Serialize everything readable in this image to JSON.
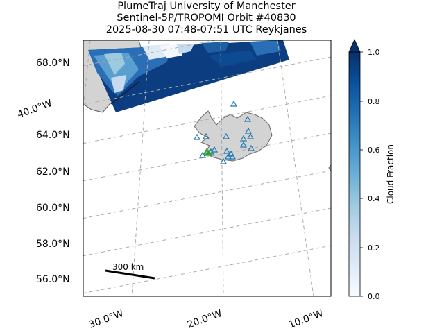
{
  "header": {
    "line1": "PlumeTraj    University of Manchester",
    "line2": "Sentinel-5P/TROPOMI Orbit #40830",
    "line3": "2025-08-30   07:48-07:51 UTC   Reykjanes"
  },
  "map": {
    "lat_labels": [
      "68.0°N",
      "64.0°N",
      "62.0°N",
      "60.0°N",
      "58.0°N",
      "56.0°N"
    ],
    "lon_labels": [
      "30.0°W",
      "20.0°W",
      "10.0°W"
    ],
    "left_lon_label": "40.0°W",
    "scale_bar_label": "300 km",
    "land_color": "#d3d3d3",
    "coast_color": "#555555",
    "volcano_marker_color": "#1f77b4",
    "source_marker_color": "#2ca02c"
  },
  "colorbar": {
    "label": "Cloud Fraction",
    "ticks": [
      "0.0",
      "0.2",
      "0.4",
      "0.6",
      "0.8",
      "1.0"
    ],
    "colormap": "Blues",
    "range": [
      0,
      1
    ]
  }
}
